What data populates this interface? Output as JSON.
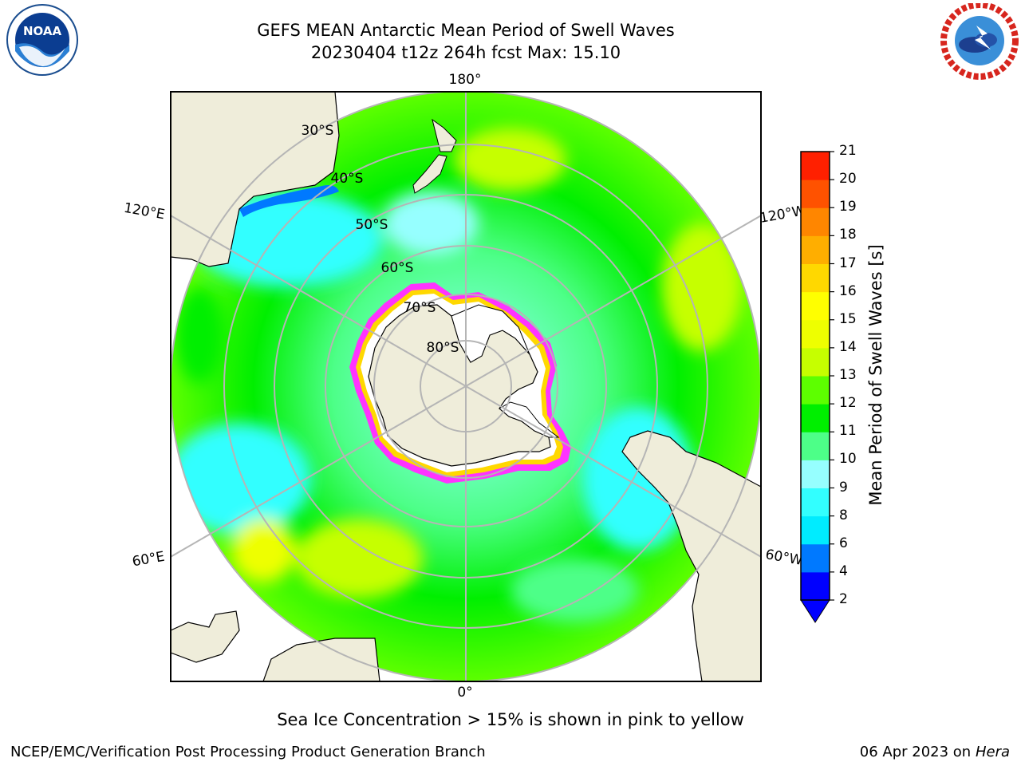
{
  "title": {
    "line1": "GEFS MEAN Antarctic Mean Period of Swell Waves",
    "line2": "20230404 t12z 264h fcst   Max: 15.10"
  },
  "logos": {
    "left": {
      "icon": "noaa-logo-icon",
      "text": "NOAA"
    },
    "right": {
      "icon": "nws-logo-icon"
    }
  },
  "map": {
    "projection": "south-polar-stereographic",
    "meridian_labels": {
      "top": "180°",
      "bottom": "0°",
      "left_upper": "120°E",
      "left_lower": "60°E",
      "right_upper": "120°W",
      "right_lower": "60°W"
    },
    "latitude_labels": [
      "30°S",
      "40°S",
      "50°S",
      "60°S",
      "70°S",
      "80°S"
    ],
    "colors": {
      "land": "#efedda",
      "grid": "#b5b5b5",
      "ice_edge": "#ff33ff",
      "ice_inner": "#ffffff"
    }
  },
  "colorbar": {
    "label": "Mean Period of Swell Waves [s]",
    "ticks": [
      "2",
      "4",
      "6",
      "8",
      "9",
      "10",
      "11",
      "12",
      "13",
      "14",
      "15",
      "16",
      "17",
      "18",
      "19",
      "20",
      "21"
    ],
    "colors": [
      "#0000ff",
      "#0079ff",
      "#00ecff",
      "#32ffff",
      "#96ffff",
      "#4dff88",
      "#00ef00",
      "#5dff00",
      "#c6ff00",
      "#eeff00",
      "#ffff00",
      "#ffd800",
      "#ffae00",
      "#ff8600",
      "#ff5200",
      "#ff2000"
    ],
    "extend_color": "#0000ff"
  },
  "note": "Sea Ice Concentration > 15% is shown in pink to yellow",
  "footer": {
    "credit": "NCEP/EMC/Verification Post Processing Product Generation Branch",
    "date": "06 Apr 2023 on ",
    "host": "Hera"
  }
}
